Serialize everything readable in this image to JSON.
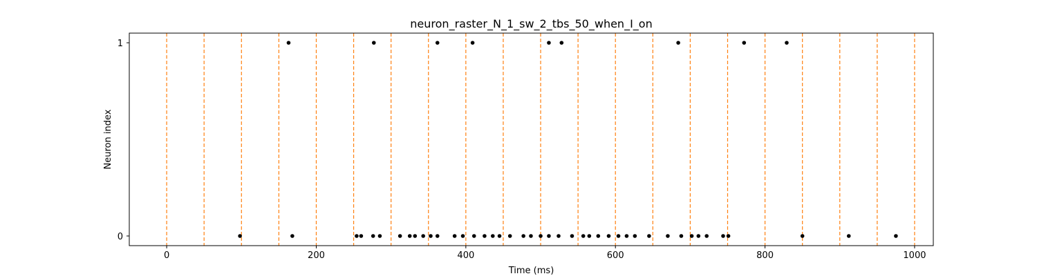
{
  "chart_data": {
    "type": "scatter",
    "title": "neuron_raster_N_1_sw_2_tbs_50_when_I_on",
    "xlabel": "Time (ms)",
    "ylabel": "Neuron index",
    "xlim": [
      -50,
      1025
    ],
    "ylim": [
      -0.05,
      1.05
    ],
    "xticks": [
      0,
      200,
      400,
      600,
      800,
      1000
    ],
    "yticks": [
      0,
      1
    ],
    "grid": false,
    "legend": "none",
    "vlines": [
      0,
      50,
      100,
      150,
      200,
      250,
      300,
      350,
      400,
      450,
      500,
      550,
      600,
      650,
      700,
      750,
      800,
      850,
      900,
      950,
      1000
    ],
    "vline_color": "#ff7f0e",
    "marker_color": "#000000",
    "series": [
      {
        "neuron": 0,
        "x": [
          98,
          168,
          254,
          260,
          276,
          285,
          312,
          325,
          332,
          343,
          353,
          362,
          385,
          396,
          411,
          425,
          436,
          445,
          459,
          477,
          487,
          500,
          511,
          524,
          542,
          557,
          565,
          577,
          591,
          604,
          615,
          626,
          645,
          670,
          688,
          702,
          711,
          722,
          744,
          751,
          850,
          912,
          975
        ]
      },
      {
        "neuron": 1,
        "x": [
          163,
          277,
          362,
          409,
          511,
          528,
          684,
          772,
          829
        ]
      }
    ]
  }
}
